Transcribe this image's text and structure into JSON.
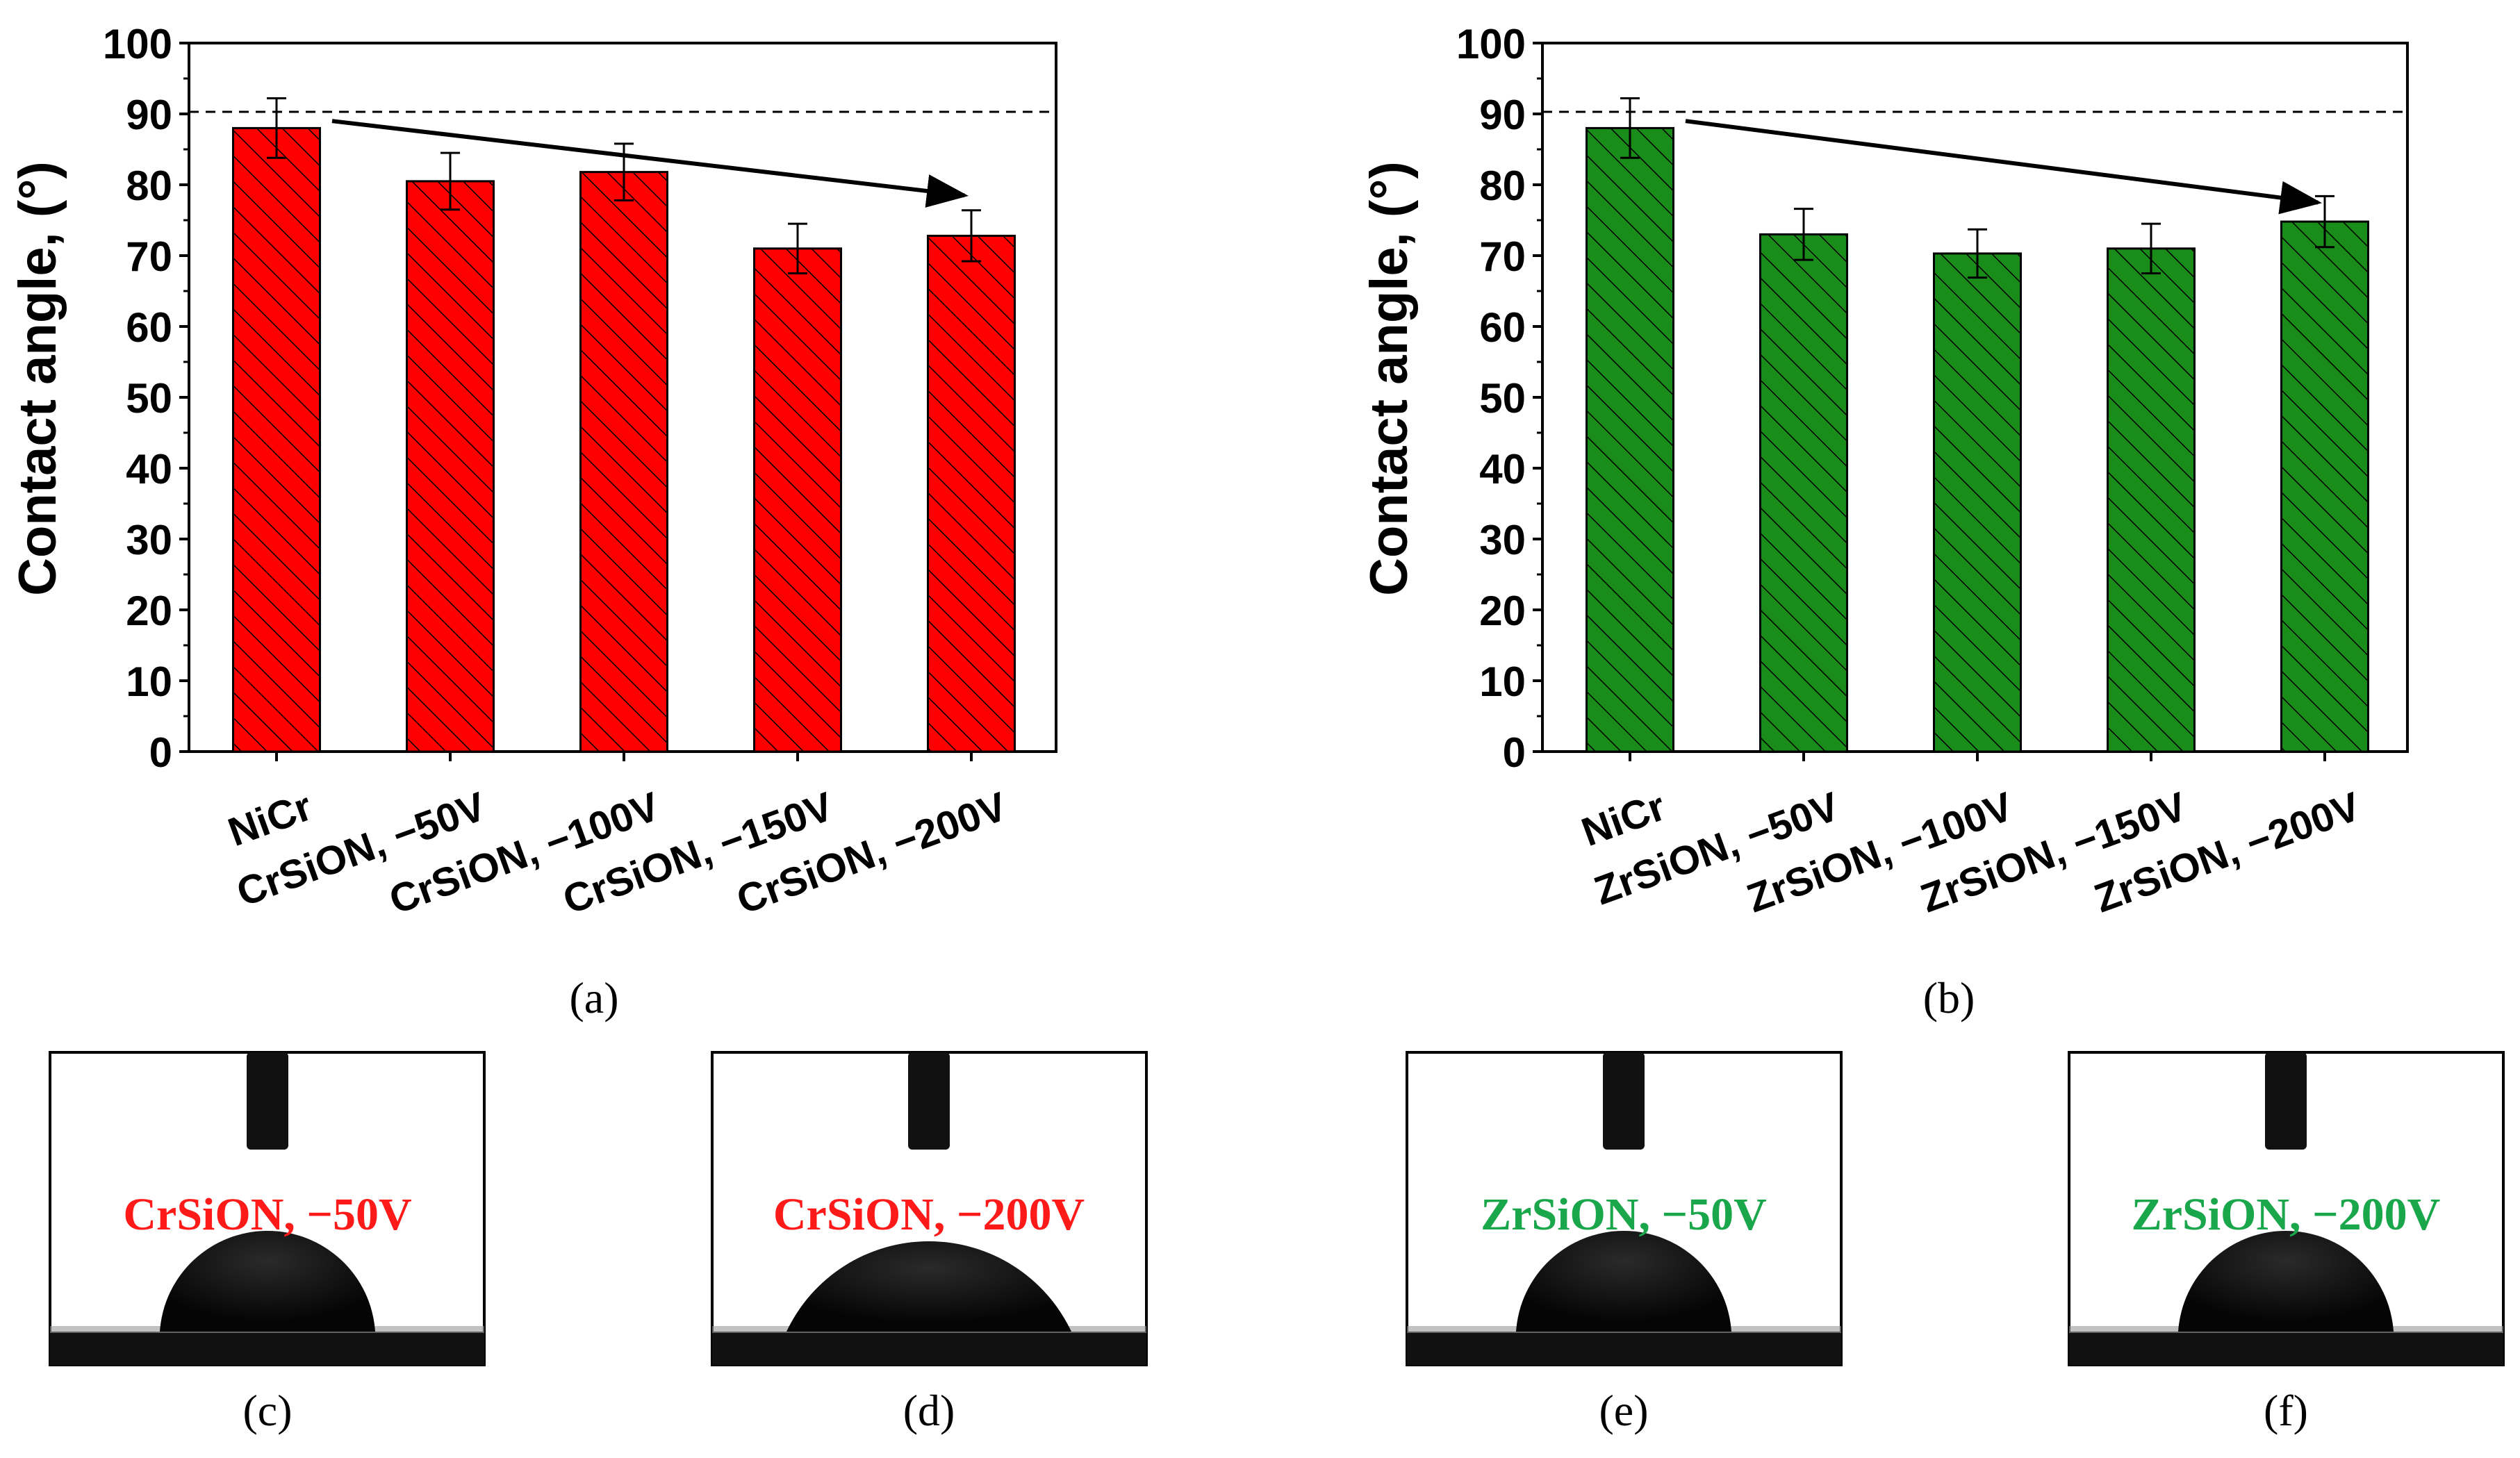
{
  "chart_data": [
    {
      "type": "bar",
      "panel_label": "a",
      "ylabel": "Contact angle, (°)",
      "xlabel": "",
      "ylim": [
        0,
        100
      ],
      "yticks": [
        0,
        10,
        20,
        30,
        40,
        50,
        60,
        70,
        80,
        90,
        100
      ],
      "categories": [
        "NiCr",
        "CrSiON, −50V",
        "CrSiON, −100V",
        "CrSiON, −150V",
        "CrSiON, −200V"
      ],
      "values": [
        88,
        80.5,
        81.8,
        71,
        72.8
      ],
      "errors": [
        4.2,
        4,
        4,
        3.5,
        3.6
      ],
      "reference_line": 90.3,
      "trend_arrow": {
        "from_category": 0,
        "from_value": 89,
        "to_category": 4,
        "to_value": 78.5
      },
      "bar_color": "#ff0000",
      "hatch": "diagonal",
      "grid": false
    },
    {
      "type": "bar",
      "panel_label": "b",
      "ylabel": "Contact angle, (°)",
      "xlabel": "",
      "ylim": [
        0,
        100
      ],
      "yticks": [
        0,
        10,
        20,
        30,
        40,
        50,
        60,
        70,
        80,
        90,
        100
      ],
      "categories": [
        "NiCr",
        "ZrSiON, −50V",
        "ZrSiON, −100V",
        "ZrSiON, −150V",
        "ZrSiON, −200V"
      ],
      "values": [
        88,
        73,
        70.3,
        71,
        74.8
      ],
      "errors": [
        4.2,
        3.6,
        3.4,
        3.5,
        3.6
      ],
      "reference_line": 90.3,
      "trend_arrow": {
        "from_category": 0,
        "from_value": 89,
        "to_category": 4,
        "to_value": 77.5
      },
      "bar_color": "#1a8c1a",
      "hatch": "diagonal",
      "grid": false
    }
  ],
  "photos": [
    {
      "panel_label": "c",
      "caption": "CrSiON, −50V",
      "caption_color": "#ff1a1a"
    },
    {
      "panel_label": "d",
      "caption": "CrSiON, −200V",
      "caption_color": "#ff1a1a"
    },
    {
      "panel_label": "e",
      "caption": "ZrSiON, −50V",
      "caption_color": "#1aa64a"
    },
    {
      "panel_label": "f",
      "caption": "ZrSiON, −200V",
      "caption_color": "#1aa64a"
    }
  ]
}
